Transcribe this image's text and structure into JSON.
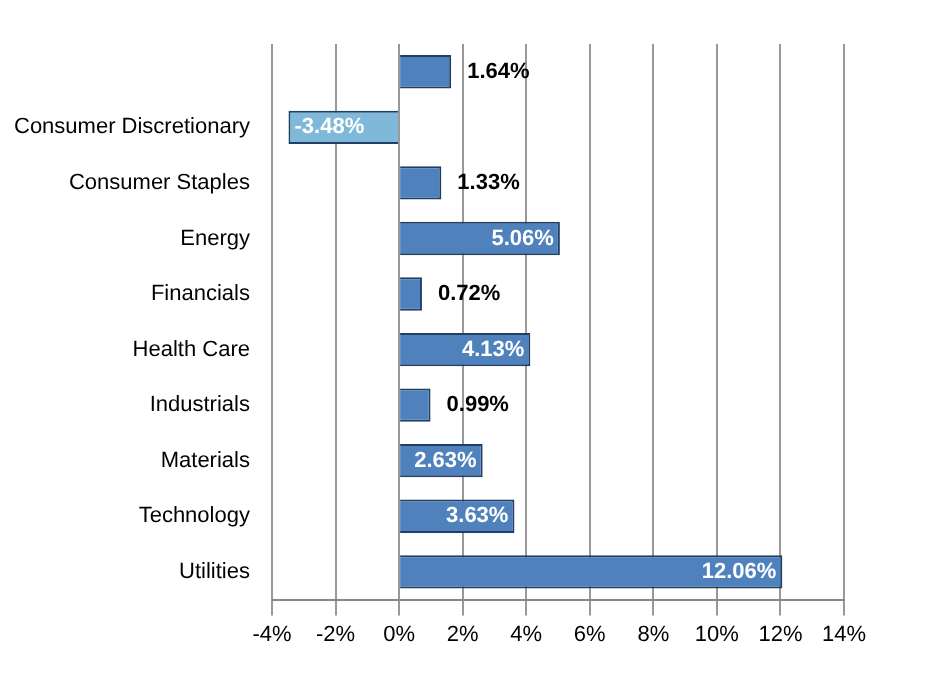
{
  "chart_data": {
    "type": "bar",
    "orientation": "horizontal",
    "categories": [
      null,
      "Consumer Discretionary",
      "Consumer Staples",
      "Energy",
      "Financials",
      "Health Care",
      "Industrials",
      "Materials",
      "Technology",
      "Utilities"
    ],
    "values": [
      1.64,
      -3.48,
      1.33,
      5.06,
      0.72,
      4.13,
      0.99,
      2.63,
      3.63,
      12.06
    ],
    "colors": [
      "#4f81bd",
      "#7fb8d8",
      "#4f81bd",
      "#4f81bd",
      "#4f81bd",
      "#4f81bd",
      "#4f81bd",
      "#4f81bd",
      "#4f81bd",
      "#4f81bd"
    ],
    "value_labels": [
      "1.64%",
      "-3.48%",
      "1.33%",
      "5.06%",
      "0.72%",
      "4.13%",
      "0.99%",
      "2.63%",
      "3.63%",
      "12.06%"
    ],
    "xlim": [
      -4,
      14
    ],
    "xticks": [
      {
        "value": -4,
        "label": "-4%"
      },
      {
        "value": -2,
        "label": "-2%"
      },
      {
        "value": 0,
        "label": "0%"
      },
      {
        "value": 2,
        "label": "2%"
      },
      {
        "value": 4,
        "label": "4%"
      },
      {
        "value": 6,
        "label": "6%"
      },
      {
        "value": 8,
        "label": "8%"
      },
      {
        "value": 10,
        "label": "10%"
      },
      {
        "value": 12,
        "label": "12%"
      },
      {
        "value": 14,
        "label": "14%"
      }
    ],
    "grid": "x",
    "legend": false
  }
}
